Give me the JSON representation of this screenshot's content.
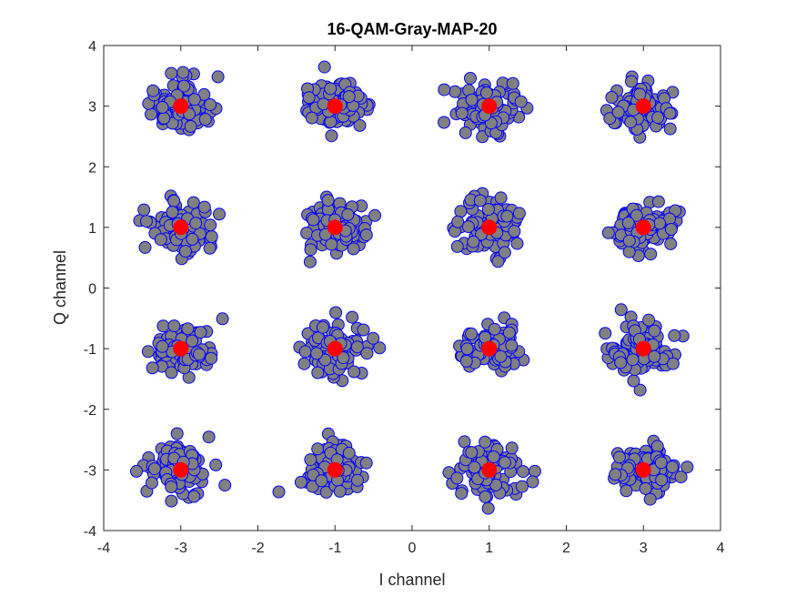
{
  "chart_data": {
    "type": "scatter",
    "title": "16-QAM-Gray-MAP-20",
    "xlabel": "I channel",
    "ylabel": "Q channel",
    "xlim": [
      -4,
      4
    ],
    "ylim": [
      -4,
      4
    ],
    "xticks": [
      -4,
      -3,
      -2,
      -1,
      0,
      1,
      2,
      3,
      4
    ],
    "yticks": [
      -4,
      -3,
      -2,
      -1,
      0,
      1,
      2,
      3,
      4
    ],
    "grid": false,
    "box": true,
    "series": [
      {
        "role": "received",
        "marker": "circle",
        "face_color": "#808080",
        "edge_color": "#0000ff",
        "clusters_centered_at": [
          [
            -3,
            3
          ],
          [
            -1,
            3
          ],
          [
            1,
            3
          ],
          [
            3,
            3
          ],
          [
            -3,
            1
          ],
          [
            -1,
            1
          ],
          [
            1,
            1
          ],
          [
            3,
            1
          ],
          [
            -3,
            -1
          ],
          [
            -1,
            -1
          ],
          [
            1,
            -1
          ],
          [
            3,
            -1
          ],
          [
            -3,
            -3
          ],
          [
            -1,
            -3
          ],
          [
            1,
            -3
          ],
          [
            3,
            -3
          ]
        ],
        "points_per_cluster": 100,
        "spread_std": 0.2
      },
      {
        "role": "ideal",
        "marker": "circle",
        "face_color": "#ff0000",
        "edge_color": "#ff0000",
        "x": [
          -3,
          -1,
          1,
          3,
          -3,
          -1,
          1,
          3,
          -3,
          -1,
          1,
          3,
          -3,
          -1,
          1,
          3
        ],
        "y": [
          3,
          3,
          3,
          3,
          1,
          1,
          1,
          1,
          -1,
          -1,
          -1,
          -1,
          -3,
          -3,
          -3,
          -3
        ]
      }
    ]
  }
}
